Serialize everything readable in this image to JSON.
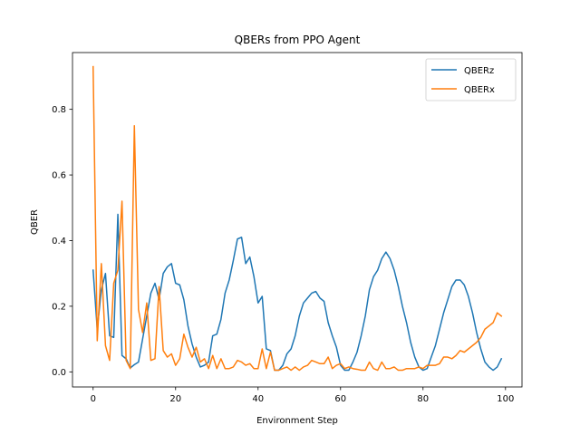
{
  "chart_data": {
    "type": "line",
    "title": "QBERs from PPO Agent",
    "xlabel": "Environment Step",
    "ylabel": "QBER",
    "xlim": [
      -5,
      104
    ],
    "ylim": [
      -0.046,
      0.973
    ],
    "xticks": [
      0,
      20,
      40,
      60,
      80,
      100
    ],
    "yticks": [
      0.0,
      0.2,
      0.4,
      0.6,
      0.8
    ],
    "grid": false,
    "legend": "top-right",
    "x": [
      0,
      1,
      2,
      3,
      4,
      5,
      6,
      7,
      8,
      9,
      10,
      11,
      12,
      13,
      14,
      15,
      16,
      17,
      18,
      19,
      20,
      21,
      22,
      23,
      24,
      25,
      26,
      27,
      28,
      29,
      30,
      31,
      32,
      33,
      34,
      35,
      36,
      37,
      38,
      39,
      40,
      41,
      42,
      43,
      44,
      45,
      46,
      47,
      48,
      49,
      50,
      51,
      52,
      53,
      54,
      55,
      56,
      57,
      58,
      59,
      60,
      61,
      62,
      63,
      64,
      65,
      66,
      67,
      68,
      69,
      70,
      71,
      72,
      73,
      74,
      75,
      76,
      77,
      78,
      79,
      80,
      81,
      82,
      83,
      84,
      85,
      86,
      87,
      88,
      89,
      90,
      91,
      92,
      93,
      94,
      95,
      96,
      97,
      98,
      99
    ],
    "series": [
      {
        "name": "QBERz",
        "color": "#1f77b4",
        "values": [
          0.31,
          0.13,
          0.25,
          0.3,
          0.11,
          0.105,
          0.48,
          0.05,
          0.04,
          0.012,
          0.022,
          0.03,
          0.1,
          0.17,
          0.24,
          0.27,
          0.22,
          0.3,
          0.32,
          0.33,
          0.27,
          0.265,
          0.22,
          0.14,
          0.085,
          0.045,
          0.015,
          0.02,
          0.03,
          0.11,
          0.115,
          0.16,
          0.24,
          0.28,
          0.34,
          0.405,
          0.41,
          0.33,
          0.35,
          0.29,
          0.21,
          0.23,
          0.07,
          0.065,
          0.005,
          0.005,
          0.02,
          0.055,
          0.07,
          0.11,
          0.17,
          0.21,
          0.225,
          0.24,
          0.245,
          0.225,
          0.215,
          0.15,
          0.11,
          0.075,
          0.02,
          0.005,
          0.005,
          0.03,
          0.06,
          0.11,
          0.17,
          0.25,
          0.29,
          0.31,
          0.345,
          0.365,
          0.345,
          0.31,
          0.26,
          0.2,
          0.15,
          0.09,
          0.045,
          0.015,
          0.005,
          0.01,
          0.045,
          0.08,
          0.13,
          0.18,
          0.22,
          0.26,
          0.28,
          0.28,
          0.265,
          0.23,
          0.18,
          0.12,
          0.07,
          0.03,
          0.015,
          0.005,
          0.015,
          0.04
        ]
      },
      {
        "name": "QBERx",
        "color": "#ff7f0e",
        "values": [
          0.93,
          0.095,
          0.33,
          0.08,
          0.035,
          0.27,
          0.31,
          0.52,
          0.035,
          0.01,
          0.75,
          0.19,
          0.12,
          0.21,
          0.035,
          0.04,
          0.26,
          0.065,
          0.045,
          0.055,
          0.02,
          0.04,
          0.115,
          0.075,
          0.045,
          0.075,
          0.03,
          0.04,
          0.01,
          0.05,
          0.01,
          0.04,
          0.01,
          0.01,
          0.015,
          0.035,
          0.03,
          0.02,
          0.025,
          0.01,
          0.01,
          0.07,
          0.01,
          0.06,
          0.005,
          0.005,
          0.01,
          0.015,
          0.005,
          0.015,
          0.005,
          0.015,
          0.02,
          0.035,
          0.03,
          0.025,
          0.025,
          0.045,
          0.01,
          0.02,
          0.025,
          0.01,
          0.015,
          0.01,
          0.008,
          0.005,
          0.005,
          0.03,
          0.01,
          0.005,
          0.03,
          0.01,
          0.01,
          0.015,
          0.005,
          0.005,
          0.01,
          0.01,
          0.01,
          0.015,
          0.01,
          0.02,
          0.02,
          0.02,
          0.025,
          0.045,
          0.045,
          0.04,
          0.05,
          0.065,
          0.06,
          0.07,
          0.08,
          0.09,
          0.105,
          0.13,
          0.14,
          0.15,
          0.18,
          0.17
        ]
      }
    ]
  }
}
